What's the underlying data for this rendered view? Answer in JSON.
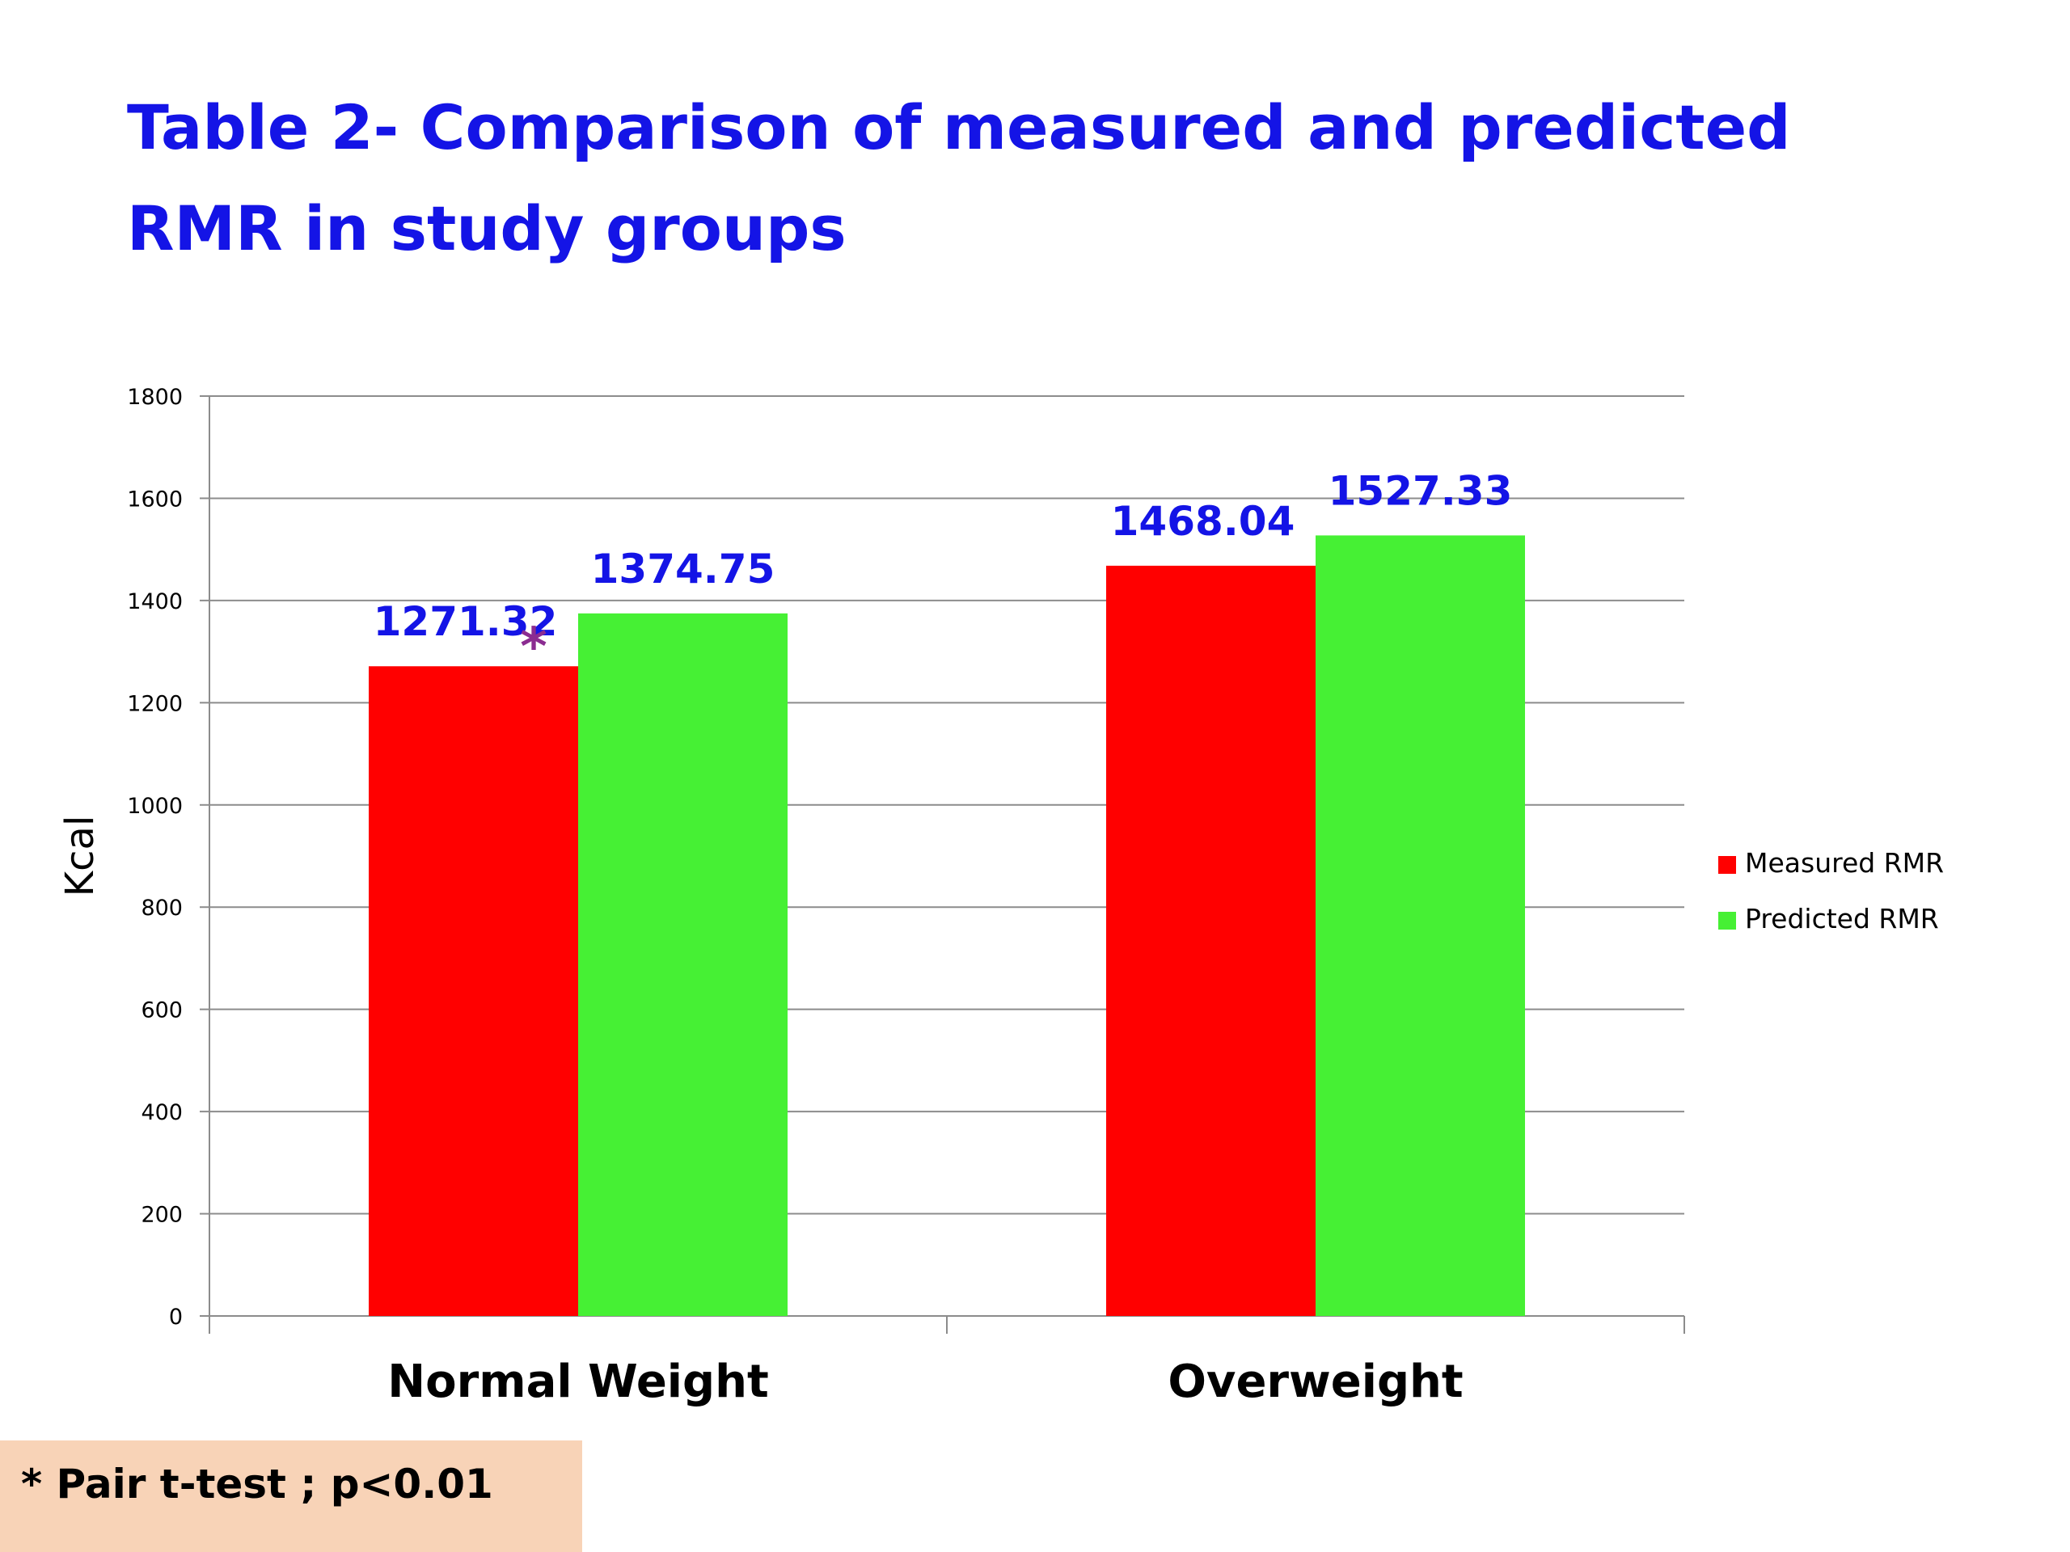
{
  "title": {
    "line1": "Table 2- Comparison of measured and predicted",
    "line2": "RMR in study groups"
  },
  "footnote": "* Pair t-test ; p<0.01",
  "colors": {
    "title": "#1414e6",
    "measured": "#ff0000",
    "predicted": "#46f034",
    "data_label": "#1414e6",
    "significance_marker": "#8b2c91",
    "gridline": "#8c8c8c",
    "footnote_background": "#f8d3b7"
  },
  "chart_data": {
    "type": "bar",
    "categories": [
      "Normal Weight",
      "Overweight"
    ],
    "series": [
      {
        "name": "Measured RMR",
        "values": [
          1271.32,
          1468.04
        ],
        "labels": [
          "1271.32",
          "1468.04"
        ]
      },
      {
        "name": "Predicted RMR",
        "values": [
          1374.75,
          1527.33
        ],
        "labels": [
          "1374.75",
          "1527.33"
        ]
      }
    ],
    "ylabel": "Kcal",
    "xlabel": "",
    "ylim": [
      0,
      1800
    ],
    "yticks": [
      0,
      200,
      400,
      600,
      800,
      1000,
      1200,
      1400,
      1600,
      1800
    ],
    "grid": true,
    "legend_position": "right",
    "annotations": [
      {
        "text": "*",
        "category": "Normal Weight",
        "series": "Measured RMR"
      }
    ]
  }
}
